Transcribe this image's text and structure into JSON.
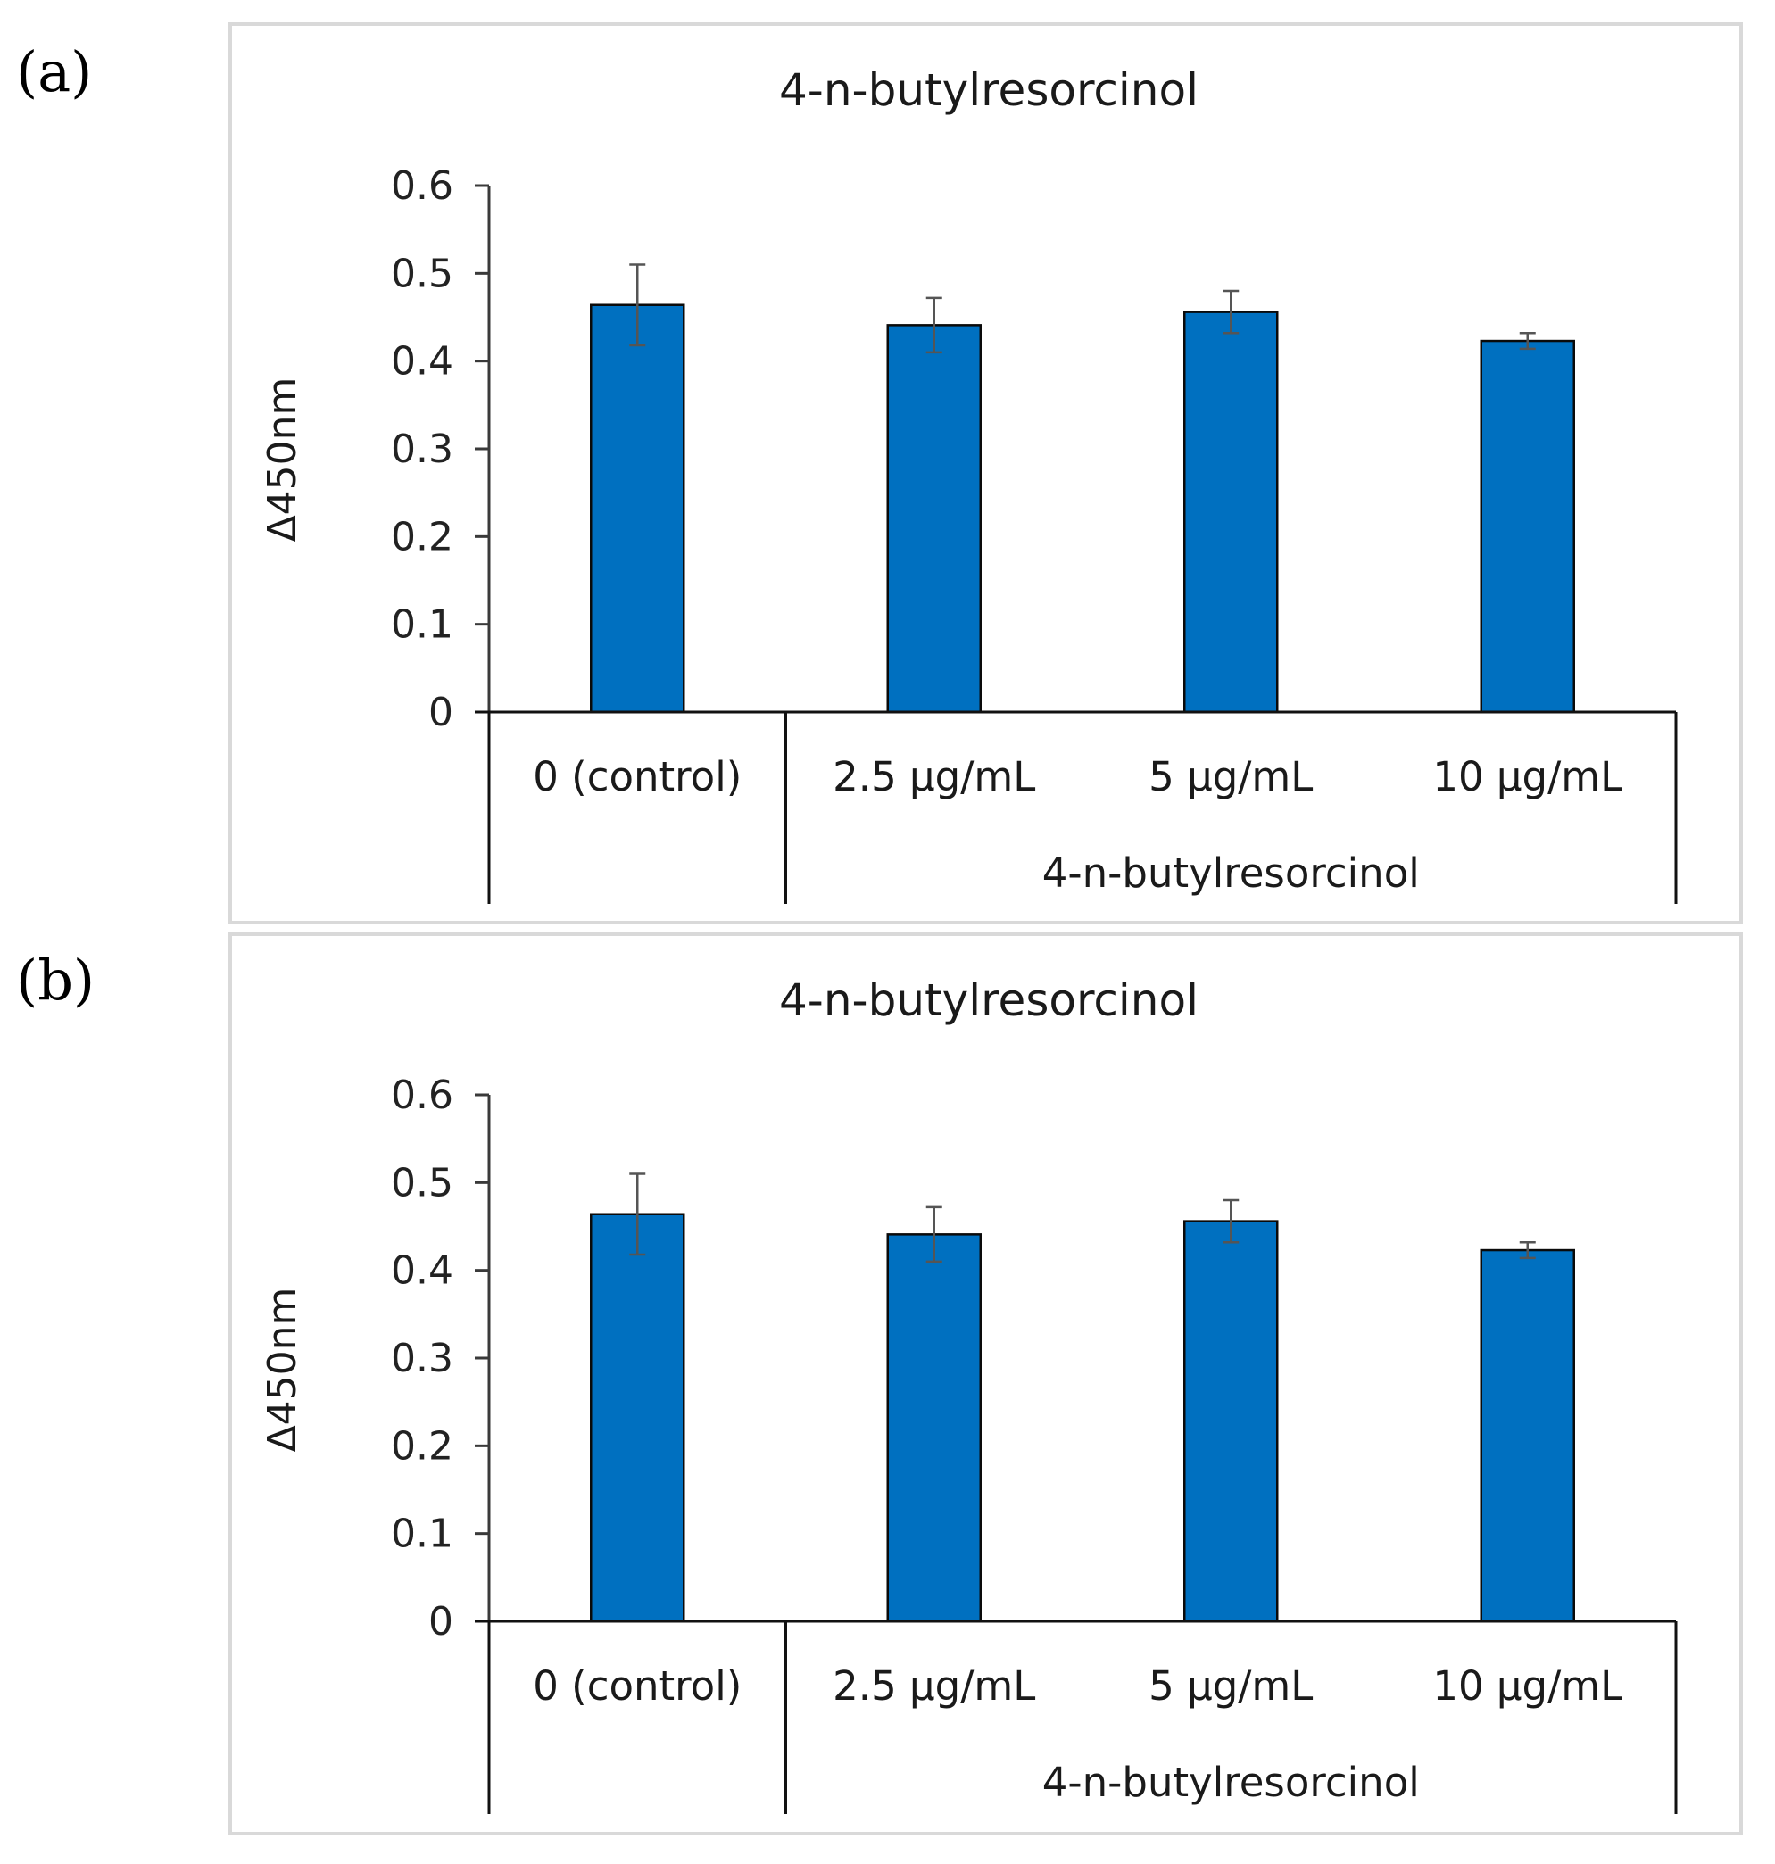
{
  "chart_data": [
    {
      "panel_label": "(a)",
      "type": "bar",
      "title": "4-n-butylresorcinol",
      "ylabel": "Δ450nm",
      "xlabel": "",
      "ylim": [
        0,
        0.6
      ],
      "yticks": [
        0,
        0.1,
        0.2,
        0.3,
        0.4,
        0.5,
        0.6
      ],
      "ytick_labels": [
        "0",
        "0.1",
        "0.2",
        "0.3",
        "0.4",
        "0.5",
        "0.6"
      ],
      "categories": [
        "0 (control)",
        "2.5 µg/mL",
        "5 µg/mL",
        "10 µg/mL"
      ],
      "group_label": "4-n-butylresorcinol",
      "grouped_categories_start": 1,
      "values": [
        0.464,
        0.441,
        0.456,
        0.423
      ],
      "errors": [
        0.046,
        0.031,
        0.024,
        0.009
      ],
      "color": "#0070c0",
      "grid": false,
      "legend": "none"
    },
    {
      "panel_label": "(b)",
      "type": "bar",
      "title": "4-n-butylresorcinol",
      "ylabel": "Δ450nm",
      "xlabel": "",
      "ylim": [
        0,
        0.6
      ],
      "yticks": [
        0,
        0.1,
        0.2,
        0.3,
        0.4,
        0.5,
        0.6
      ],
      "ytick_labels": [
        "0",
        "0.1",
        "0.2",
        "0.3",
        "0.4",
        "0.5",
        "0.6"
      ],
      "categories": [
        "0 (control)",
        "2.5 µg/mL",
        "5 µg/mL",
        "10 µg/mL"
      ],
      "group_label": "4-n-butylresorcinol",
      "grouped_categories_start": 1,
      "values": [
        0.464,
        0.441,
        0.456,
        0.423
      ],
      "errors": [
        0.046,
        0.031,
        0.024,
        0.009
      ],
      "color": "#0070c0",
      "grid": false,
      "legend": "none"
    }
  ]
}
